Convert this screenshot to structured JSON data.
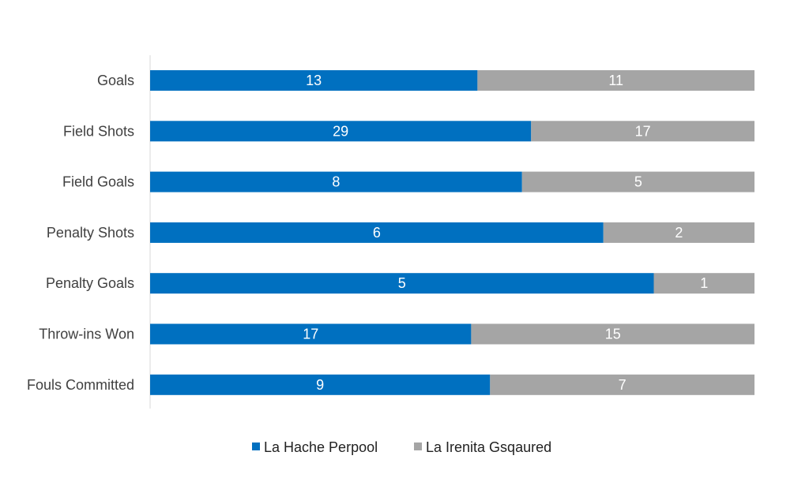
{
  "chart_data": {
    "type": "bar",
    "stacked": "percent",
    "orientation": "horizontal",
    "title": "",
    "xlabel": "",
    "ylabel": "",
    "categories": [
      "Goals",
      "Field Shots",
      "Field Goals",
      "Penalty Shots",
      "Penalty Goals",
      "Throw-ins Won",
      "Fouls Committed"
    ],
    "series": [
      {
        "name": "La Hache Perpool",
        "color": "#0070C0",
        "values": [
          13,
          29,
          8,
          6,
          5,
          17,
          9
        ]
      },
      {
        "name": "La Irenita Gsqaured",
        "color": "#A5A5A5",
        "values": [
          11,
          17,
          5,
          2,
          1,
          15,
          7
        ]
      }
    ],
    "legend": "bottom",
    "grid": false
  }
}
